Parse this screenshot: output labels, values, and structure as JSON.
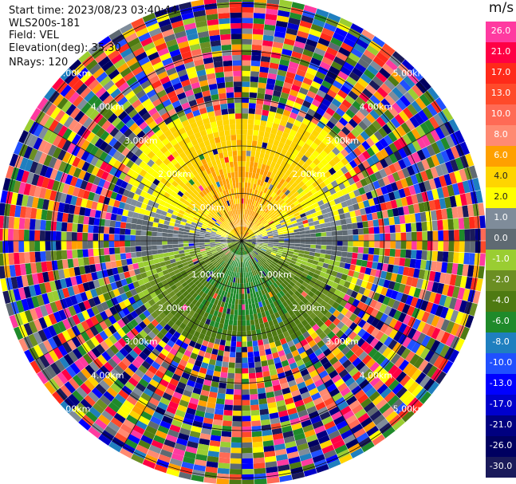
{
  "header": {
    "start_time": "Start time: 2023/08/23 03:40:44",
    "instrument": "WLS200s-181",
    "field": "Field: VEL",
    "elevation": "Elevation(deg): 35.30",
    "nrays": "NRays: 120"
  },
  "colorbar": {
    "unit": "m/s",
    "levels": [
      {
        "label": "26.0",
        "color": "#ff3aa0",
        "text_color": "#ffffff"
      },
      {
        "label": "21.0",
        "color": "#ff0044",
        "text_color": "#ffffff"
      },
      {
        "label": "17.0",
        "color": "#ff2a1a",
        "text_color": "#ffffff"
      },
      {
        "label": "13.0",
        "color": "#ff4a2a",
        "text_color": "#ffffff"
      },
      {
        "label": "10.0",
        "color": "#ff6a55",
        "text_color": "#ffffff"
      },
      {
        "label": "8.0",
        "color": "#ff8a72",
        "text_color": "#ffffff"
      },
      {
        "label": "6.0",
        "color": "#ffa000",
        "text_color": "#ffffff"
      },
      {
        "label": "4.0",
        "color": "#ffd400",
        "text_color": "#222222"
      },
      {
        "label": "2.0",
        "color": "#ffff00",
        "text_color": "#222222"
      },
      {
        "label": "1.0",
        "color": "#7f8c9a",
        "text_color": "#ffffff"
      },
      {
        "label": "0.0",
        "color": "#5f6a72",
        "text_color": "#ffffff"
      },
      {
        "label": "-1.0",
        "color": "#9acd32",
        "text_color": "#ffffff"
      },
      {
        "label": "-2.0",
        "color": "#6b8e23",
        "text_color": "#ffffff"
      },
      {
        "label": "-4.0",
        "color": "#4e7a12",
        "text_color": "#ffffff"
      },
      {
        "label": "-6.0",
        "color": "#1f8a2a",
        "text_color": "#ffffff"
      },
      {
        "label": "-8.0",
        "color": "#1f7fbf",
        "text_color": "#ffffff"
      },
      {
        "label": "-10.0",
        "color": "#2050ff",
        "text_color": "#ffffff"
      },
      {
        "label": "-13.0",
        "color": "#0000ff",
        "text_color": "#ffffff"
      },
      {
        "label": "-17.0",
        "color": "#0000cc",
        "text_color": "#ffffff"
      },
      {
        "label": "-21.0",
        "color": "#000080",
        "text_color": "#ffffff"
      },
      {
        "label": "-26.0",
        "color": "#000060",
        "text_color": "#ffffff"
      },
      {
        "label": "-30.0",
        "color": "#1a1a5a",
        "text_color": "#ffffff"
      }
    ]
  },
  "range_labels": [
    {
      "text": "1.00km",
      "ring": 1
    },
    {
      "text": "2.00km",
      "ring": 2
    },
    {
      "text": "3.00km",
      "ring": 3
    },
    {
      "text": "4.00km",
      "ring": 4
    },
    {
      "text": "5.00km",
      "ring": 5
    }
  ],
  "chart_data": {
    "type": "heatmap",
    "projection": "polar PPI",
    "nrays": 120,
    "range_ring_km": [
      1.0,
      2.0,
      3.0,
      4.0,
      5.0
    ],
    "unit": "m/s",
    "regions": [
      {
        "range_km": [
          0.0,
          1.0
        ],
        "direction": "north",
        "velocity_ms": 4.0
      },
      {
        "range_km": [
          1.0,
          2.0
        ],
        "direction": "north",
        "velocity_ms": 2.0
      },
      {
        "range_km": [
          0.0,
          2.0
        ],
        "direction": "east-west",
        "velocity_ms": 0.0
      },
      {
        "range_km": [
          0.0,
          1.0
        ],
        "direction": "south",
        "velocity_ms": -4.0
      },
      {
        "range_km": [
          1.0,
          2.5
        ],
        "direction": "south",
        "velocity_ms": -2.0
      },
      {
        "range_km": [
          2.5,
          5.2
        ],
        "direction": "all",
        "velocity_ms": "noise"
      }
    ]
  }
}
